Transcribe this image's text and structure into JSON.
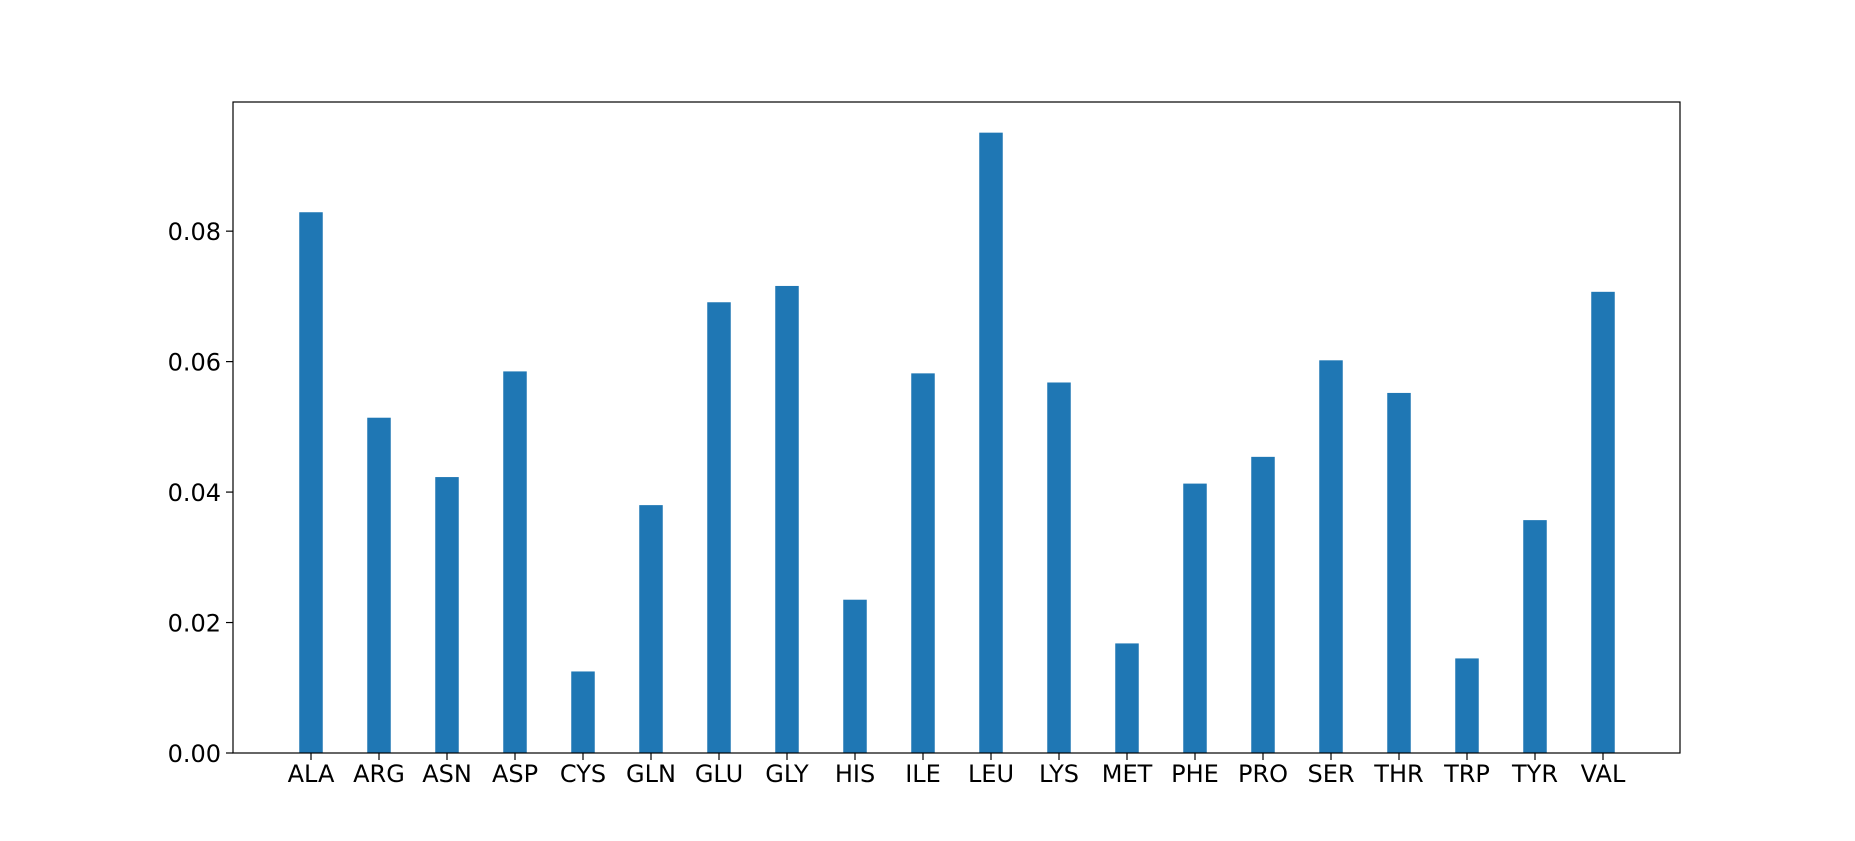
{
  "chart_data": {
    "type": "bar",
    "title": "",
    "xlabel": "",
    "ylabel": "",
    "categories": [
      "ALA",
      "ARG",
      "ASN",
      "ASP",
      "CYS",
      "GLN",
      "GLU",
      "GLY",
      "HIS",
      "ILE",
      "LEU",
      "LYS",
      "MET",
      "PHE",
      "PRO",
      "SER",
      "THR",
      "TRP",
      "TYR",
      "VAL"
    ],
    "values": [
      0.0829,
      0.0514,
      0.0423,
      0.0585,
      0.0125,
      0.038,
      0.0691,
      0.0716,
      0.0235,
      0.0582,
      0.0951,
      0.0568,
      0.0168,
      0.0413,
      0.0454,
      0.0602,
      0.0552,
      0.0145,
      0.0357,
      0.0707
    ],
    "ylim": [
      0,
      0.0998
    ],
    "yticks": [
      0.0,
      0.02,
      0.04,
      0.06,
      0.08
    ],
    "ytick_labels": [
      "0.00",
      "0.02",
      "0.04",
      "0.06",
      "0.08"
    ],
    "grid": false,
    "legend": "none",
    "bar_color": "#1f77b4"
  }
}
